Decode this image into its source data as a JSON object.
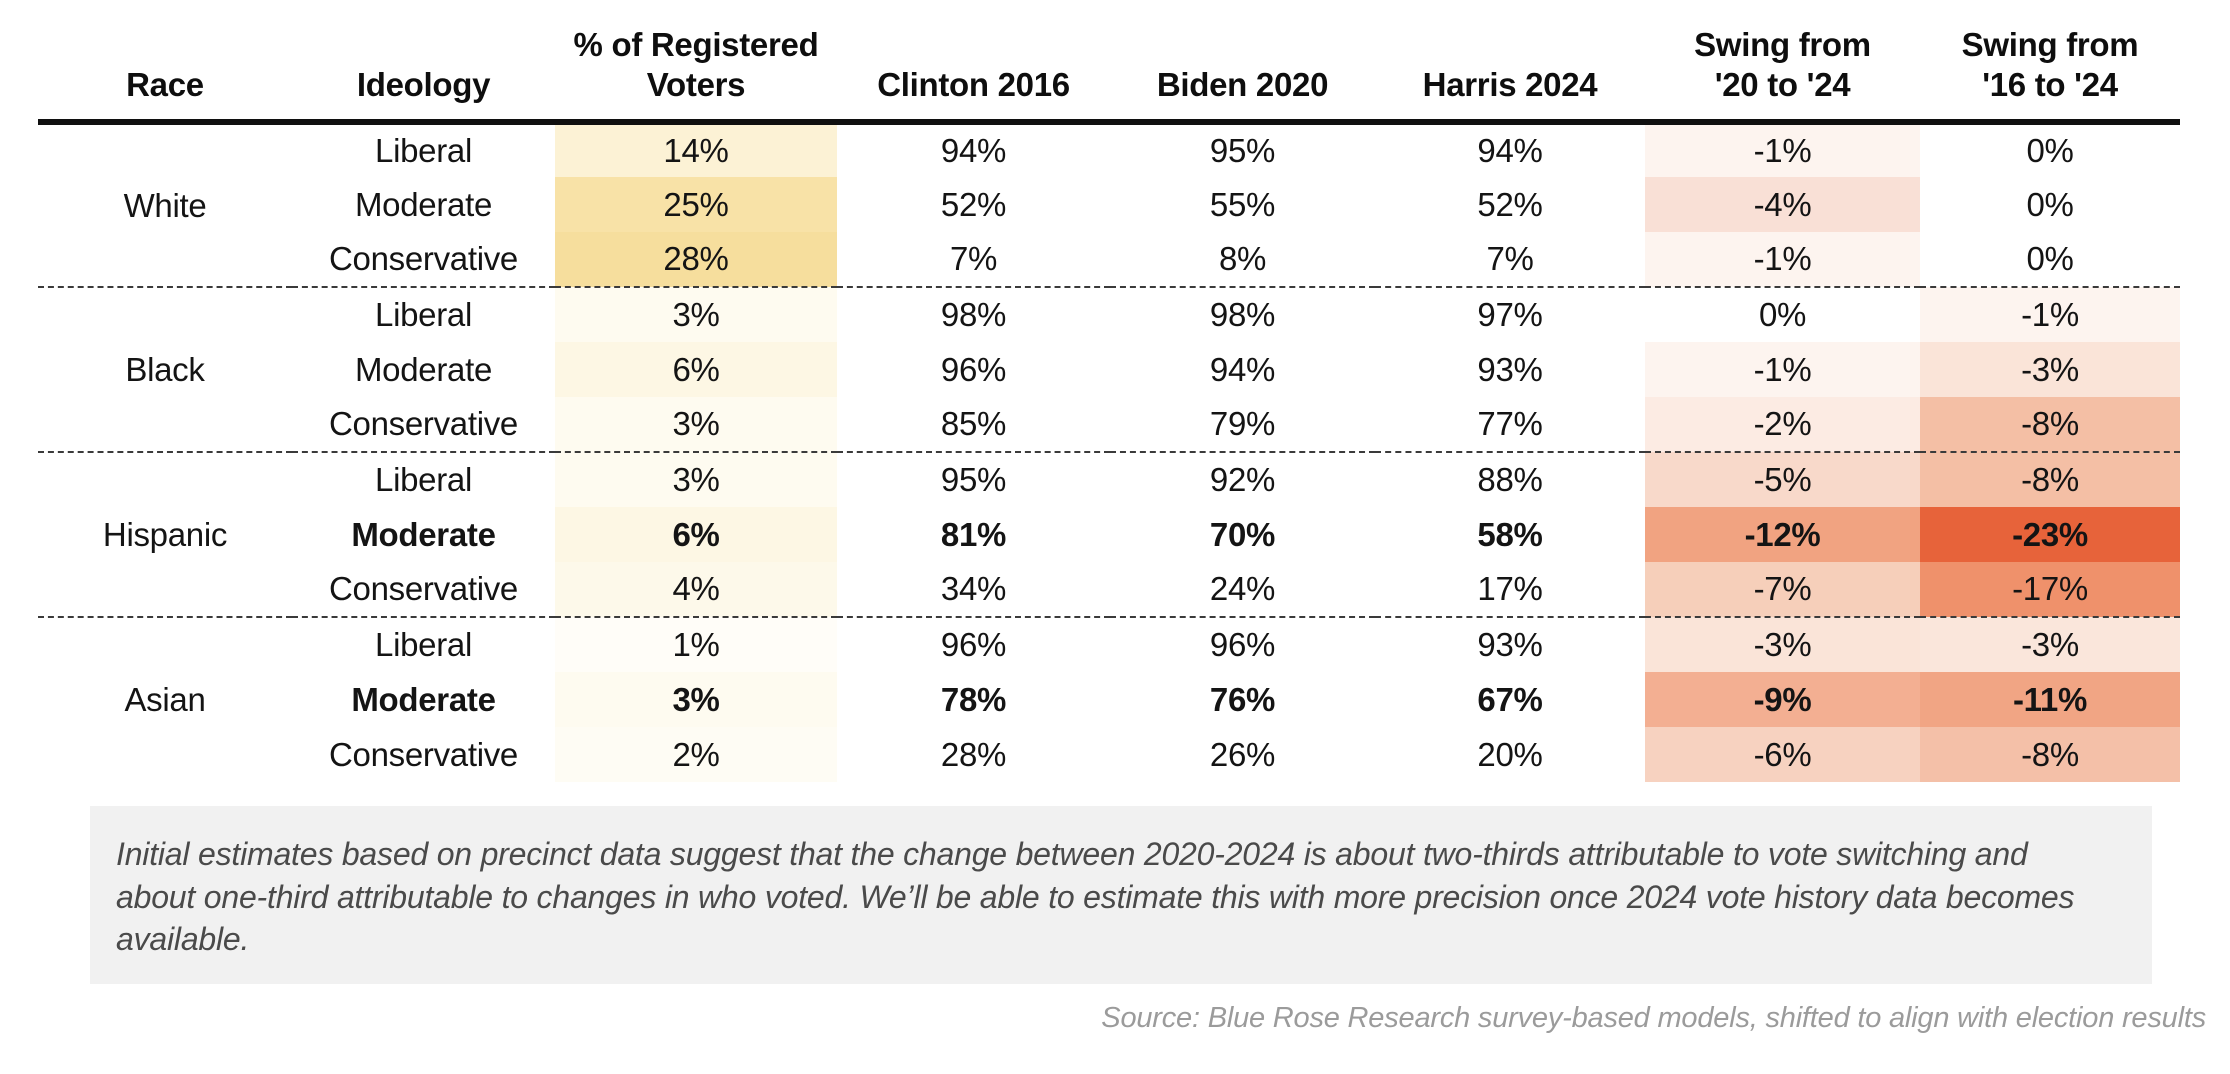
{
  "chart_data": {
    "type": "table",
    "columns": [
      "Race",
      "Ideology",
      "% of Registered Voters",
      "Clinton 2016",
      "Biden 2020",
      "Harris 2024",
      "Swing from '20 to '24",
      "Swing from '16 to '24"
    ],
    "header_lines": {
      "race": "Race",
      "ideology": "Ideology",
      "reg1": "% of Registered",
      "reg2": "Voters",
      "clinton": "Clinton 2016",
      "biden": "Biden 2020",
      "harris": "Harris 2024",
      "swing20a": "Swing from",
      "swing20b": "'20 to '24",
      "swing16a": "Swing from",
      "swing16b": "'16 to '24"
    },
    "palette": {
      "reg_scale_low": "#fffdf8",
      "reg_scale_high": "#f6de9d",
      "swing_scale_low": "#fdf4ef",
      "swing_scale_high": "#e7633a"
    },
    "groups": [
      {
        "race": "White",
        "rows": [
          {
            "ideology": "Liberal",
            "reg": "14%",
            "clinton": "94%",
            "biden": "95%",
            "harris": "94%",
            "swing20": "-1%",
            "swing16": "0%",
            "bold": false,
            "bg": {
              "reg": "#fcf2d5",
              "s20": "#fdf4ef",
              "s16": ""
            }
          },
          {
            "ideology": "Moderate",
            "reg": "25%",
            "clinton": "52%",
            "biden": "55%",
            "harris": "52%",
            "swing20": "-4%",
            "swing16": "0%",
            "bold": false,
            "bg": {
              "reg": "#f8e2a7",
              "s20": "#f9e0d6",
              "s16": ""
            }
          },
          {
            "ideology": "Conservative",
            "reg": "28%",
            "clinton": "7%",
            "biden": "8%",
            "harris": "7%",
            "swing20": "-1%",
            "swing16": "0%",
            "bold": false,
            "bg": {
              "reg": "#f6de9d",
              "s20": "#fdf4ef",
              "s16": ""
            }
          }
        ]
      },
      {
        "race": "Black",
        "rows": [
          {
            "ideology": "Liberal",
            "reg": "3%",
            "clinton": "98%",
            "biden": "98%",
            "harris": "97%",
            "swing20": "0%",
            "swing16": "-1%",
            "bold": false,
            "bg": {
              "reg": "#fefbf0",
              "s20": "",
              "s16": "#fdf4ef"
            }
          },
          {
            "ideology": "Moderate",
            "reg": "6%",
            "clinton": "96%",
            "biden": "94%",
            "harris": "93%",
            "swing20": "-1%",
            "swing16": "-3%",
            "bold": false,
            "bg": {
              "reg": "#fdf7e4",
              "s20": "#fdf4ef",
              "s16": "#fae4d8"
            }
          },
          {
            "ideology": "Conservative",
            "reg": "3%",
            "clinton": "85%",
            "biden": "79%",
            "harris": "77%",
            "swing20": "-2%",
            "swing16": "-8%",
            "bold": false,
            "bg": {
              "reg": "#fefbf0",
              "s20": "#fcebe3",
              "s16": "#f4bfa5"
            }
          }
        ]
      },
      {
        "race": "Hispanic",
        "rows": [
          {
            "ideology": "Liberal",
            "reg": "3%",
            "clinton": "95%",
            "biden": "92%",
            "harris": "88%",
            "swing20": "-5%",
            "swing16": "-8%",
            "bold": false,
            "bg": {
              "reg": "#fefbf0",
              "s20": "#f8d9ca",
              "s16": "#f4bfa5"
            }
          },
          {
            "ideology": "Moderate",
            "reg": "6%",
            "clinton": "81%",
            "biden": "70%",
            "harris": "58%",
            "swing20": "-12%",
            "swing16": "-23%",
            "bold": true,
            "bg": {
              "reg": "#fdf7e4",
              "s20": "#f1a381",
              "s16": "#e7633a"
            }
          },
          {
            "ideology": "Conservative",
            "reg": "4%",
            "clinton": "34%",
            "biden": "24%",
            "harris": "17%",
            "swing20": "-7%",
            "swing16": "-17%",
            "bold": false,
            "bg": {
              "reg": "#fdf9ea",
              "s20": "#f6cfba",
              "s16": "#ef916b"
            }
          }
        ]
      },
      {
        "race": "Asian",
        "rows": [
          {
            "ideology": "Liberal",
            "reg": "1%",
            "clinton": "96%",
            "biden": "96%",
            "harris": "93%",
            "swing20": "-3%",
            "swing16": "-3%",
            "bold": false,
            "bg": {
              "reg": "#fffdf8",
              "s20": "#fae4d8",
              "s16": "#fae6db"
            }
          },
          {
            "ideology": "Moderate",
            "reg": "3%",
            "clinton": "78%",
            "biden": "76%",
            "harris": "67%",
            "swing20": "-9%",
            "swing16": "-11%",
            "bold": true,
            "bg": {
              "reg": "#fefbf0",
              "s20": "#f3af92",
              "s16": "#f1a584"
            }
          },
          {
            "ideology": "Conservative",
            "reg": "2%",
            "clinton": "28%",
            "biden": "26%",
            "harris": "20%",
            "swing20": "-6%",
            "swing16": "-8%",
            "bold": false,
            "bg": {
              "reg": "#fefcf4",
              "s20": "#f7d2c0",
              "s16": "#f4c0a8"
            }
          }
        ]
      }
    ],
    "footnote": "Initial estimates based on precinct data suggest that the change between 2020-2024 is about two-thirds attributable to vote switching and about one-third attributable to changes in who voted. We’ll be able to estimate this with more precision once 2024 vote history data becomes available.",
    "source": "Source: Blue Rose Research survey-based models, shifted to align with election results"
  }
}
